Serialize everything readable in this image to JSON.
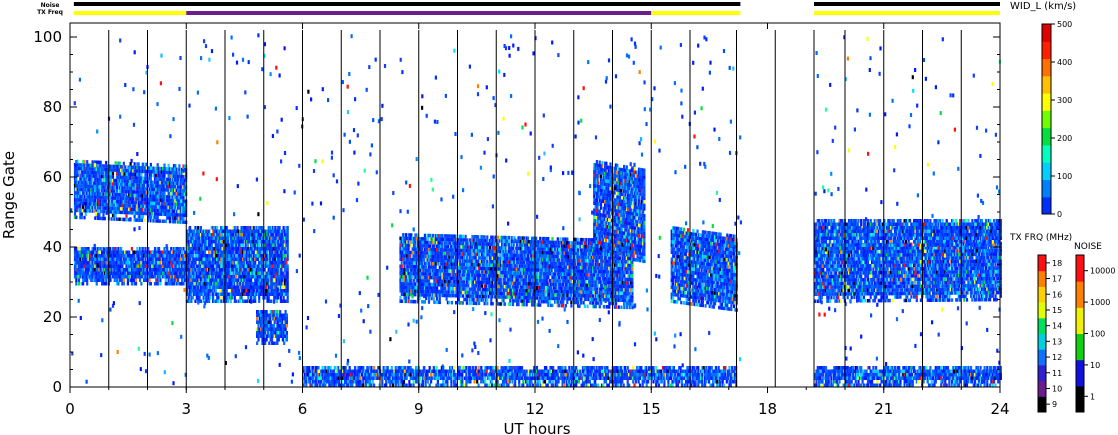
{
  "chart_data": {
    "type": "heatmap",
    "title": "",
    "xlabel": "UT hours",
    "ylabel": "Range Gate",
    "xlim": [
      0,
      24
    ],
    "ylim": [
      0,
      102
    ],
    "x_ticks": [
      "0",
      "3",
      "6",
      "9",
      "12",
      "15",
      "18",
      "21",
      "24"
    ],
    "y_ticks": [
      "0",
      "20",
      "40",
      "60",
      "80",
      "100"
    ],
    "scan_lines_ut": [
      1,
      2,
      3,
      4,
      5,
      6,
      7,
      8,
      9,
      10,
      11,
      12,
      13,
      14,
      15,
      16,
      17.2,
      18.2,
      19.2,
      20,
      21,
      22,
      23
    ],
    "data_gap": [
      17.3,
      19.2
    ],
    "top_bars": {
      "noise_label": "Noise",
      "txfreq_label": "TX Freq",
      "noise": [
        {
          "from": 0.1,
          "to": 17.3,
          "level": "black"
        },
        {
          "from": 19.2,
          "to": 24,
          "level": "black"
        }
      ],
      "txfreq": [
        {
          "from": 0.1,
          "to": 3.0,
          "color": "#ffff00"
        },
        {
          "from": 3.0,
          "to": 15.0,
          "color": "#6a1e8c"
        },
        {
          "from": 15.0,
          "to": 17.3,
          "color": "#ffff00"
        },
        {
          "from": 19.2,
          "to": 24,
          "color": "#ffff00"
        }
      ]
    },
    "colorbars": {
      "width": {
        "label": "WID_L (km/s)",
        "ticks": [
          "0",
          "100",
          "200",
          "300",
          "400",
          "500"
        ],
        "range": [
          0,
          500
        ],
        "colors": [
          "#0030ff",
          "#0080ff",
          "#00d0ff",
          "#00ffc0",
          "#00e040",
          "#70ff00",
          "#ffff00",
          "#ffc000",
          "#ff7000",
          "#ff2000",
          "#e00000"
        ]
      },
      "txfreq": {
        "label": "TX FRQ (MHz)",
        "ticks": [
          "9",
          "10",
          "11",
          "12",
          "13",
          "14",
          "15",
          "16",
          "17",
          "18"
        ],
        "colors": [
          "#000000",
          "#6a1e8c",
          "#3020d0",
          "#1070ff",
          "#00d0e0",
          "#00e060",
          "#e0ff00",
          "#ffd000",
          "#ff8000",
          "#ff1010"
        ]
      },
      "noise": {
        "label": "NOISE",
        "ticks": [
          "1",
          "10",
          "100",
          "1000",
          "10000"
        ],
        "colors": [
          "#000000",
          "#1010e0",
          "#10d010",
          "#f0f000",
          "#ff8000",
          "#ff1010"
        ]
      }
    },
    "echo_regions": [
      {
        "t": [
          0.1,
          3.0
        ],
        "g": [
          48,
          65
        ],
        "slope": -0.5,
        "label": "band"
      },
      {
        "t": [
          0.1,
          3.0
        ],
        "g": [
          29,
          40
        ],
        "slope": 0,
        "label": "band"
      },
      {
        "t": [
          3.0,
          5.6
        ],
        "g": [
          24,
          46
        ],
        "slope": 0,
        "label": "band"
      },
      {
        "t": [
          4.8,
          5.6
        ],
        "g": [
          12,
          22
        ],
        "slope": 0,
        "label": "band"
      },
      {
        "t": [
          8.5,
          14.5
        ],
        "g": [
          24,
          44
        ],
        "slope": -0.3,
        "label": "band"
      },
      {
        "t": [
          13.5,
          14.8
        ],
        "g": [
          38,
          65
        ],
        "slope": -2,
        "label": "band"
      },
      {
        "t": [
          15.5,
          17.2
        ],
        "g": [
          24,
          46
        ],
        "slope": -1.5,
        "label": "band"
      },
      {
        "t": [
          19.2,
          24
        ],
        "g": [
          24,
          42
        ],
        "slope": 0.1,
        "label": "band"
      },
      {
        "t": [
          19.2,
          24
        ],
        "g": [
          40,
          48
        ],
        "slope": 0,
        "label": "band"
      },
      {
        "t": [
          6.0,
          17.2
        ],
        "g": [
          0,
          6
        ],
        "slope": 0,
        "label": "ground"
      },
      {
        "t": [
          19.2,
          24
        ],
        "g": [
          0,
          6
        ],
        "slope": 0,
        "label": "ground"
      }
    ]
  }
}
